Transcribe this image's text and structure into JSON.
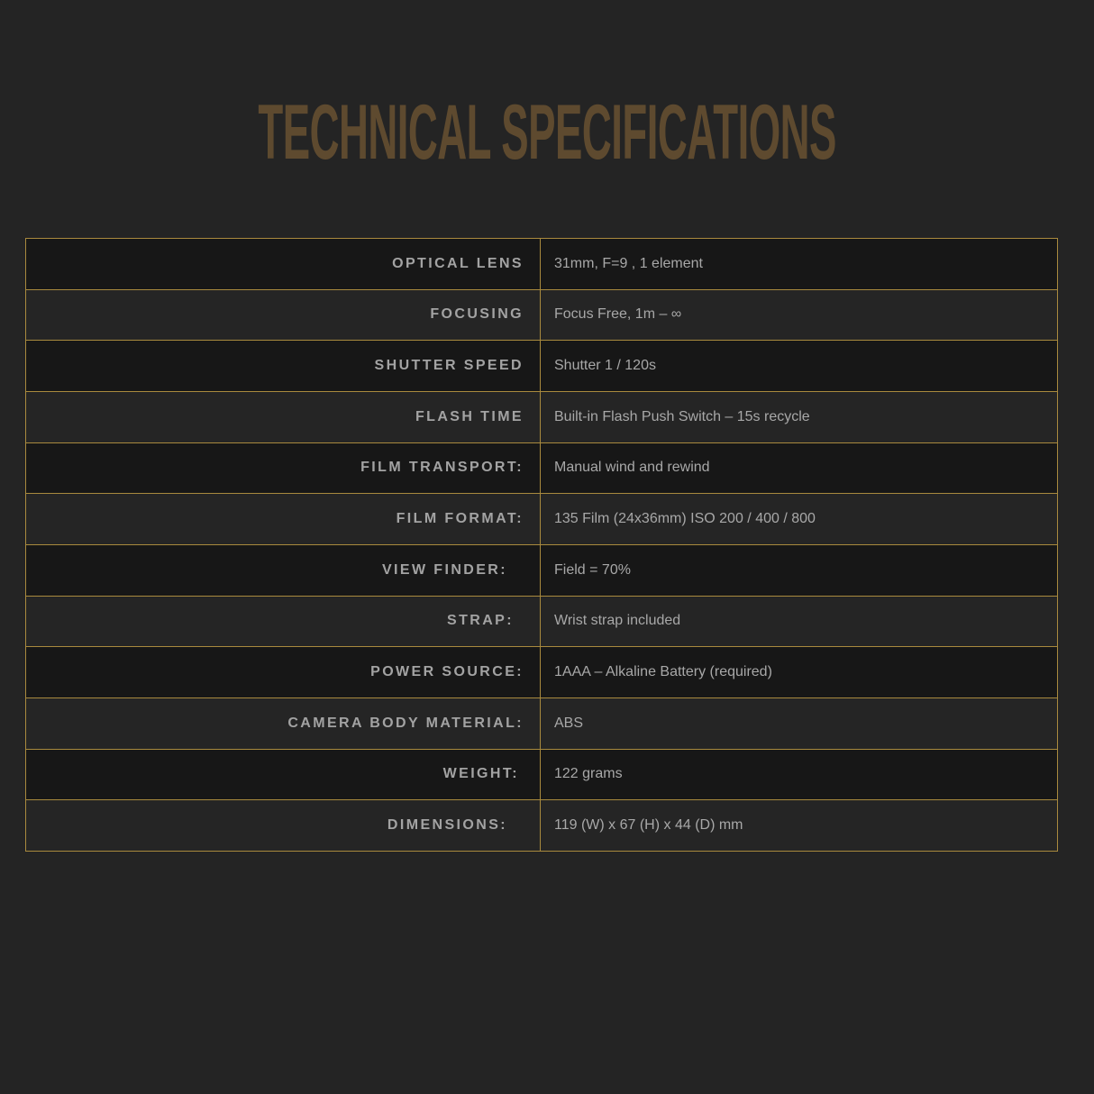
{
  "title": "TECHNICAL SPECIFICATIONS",
  "colors": {
    "title": "#5e4a2f",
    "border": "#a98a3e",
    "row_dark": "#171717",
    "row_light": "#252525",
    "background": "#242424"
  },
  "specs": [
    {
      "label": "OPTICAL LENS",
      "value": "31mm, F=9 , 1 element"
    },
    {
      "label": "FOCUSING",
      "value": "Focus Free, 1m – ∞"
    },
    {
      "label": "SHUTTER SPEED",
      "value": "Shutter 1 / 120s"
    },
    {
      "label": "FLASH TIME",
      "value": "Built-in Flash Push Switch – 15s recycle"
    },
    {
      "label": "FILM TRANSPORT:",
      "value": "Manual wind and rewind"
    },
    {
      "label": "FILM FORMAT:",
      "value": "135 Film (24x36mm)  ISO 200 / 400 / 800"
    },
    {
      "label": "VIEW FINDER:",
      "value": "Field = 70%"
    },
    {
      "label": "STRAP:",
      "value": "Wrist strap included"
    },
    {
      "label": "POWER SOURCE:",
      "value": "1AAA – Alkaline Battery (required)"
    },
    {
      "label": "CAMERA BODY MATERIAL:",
      "value": "ABS"
    },
    {
      "label": "WEIGHT:",
      "value": "122 grams"
    },
    {
      "label": "DIMENSIONS:",
      "value": "119 (W) x 67 (H) x 44 (D) mm"
    }
  ]
}
